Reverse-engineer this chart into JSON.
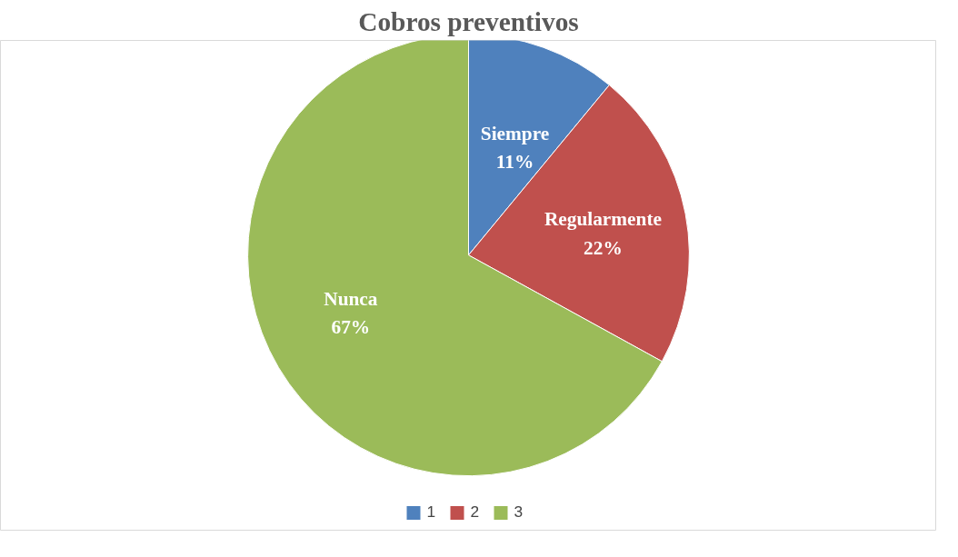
{
  "chart_data": {
    "type": "pie",
    "title": "Cobros preventivos",
    "categories": [
      "1",
      "2",
      "3"
    ],
    "values": [
      11,
      22,
      67
    ],
    "colors": [
      "#4f81bd",
      "#c0504d",
      "#9bbb59"
    ],
    "value_labels": [
      "Siempre\n11%",
      "Regularmente\n22%",
      "Nunca\n67%"
    ],
    "legend": "bottom"
  }
}
